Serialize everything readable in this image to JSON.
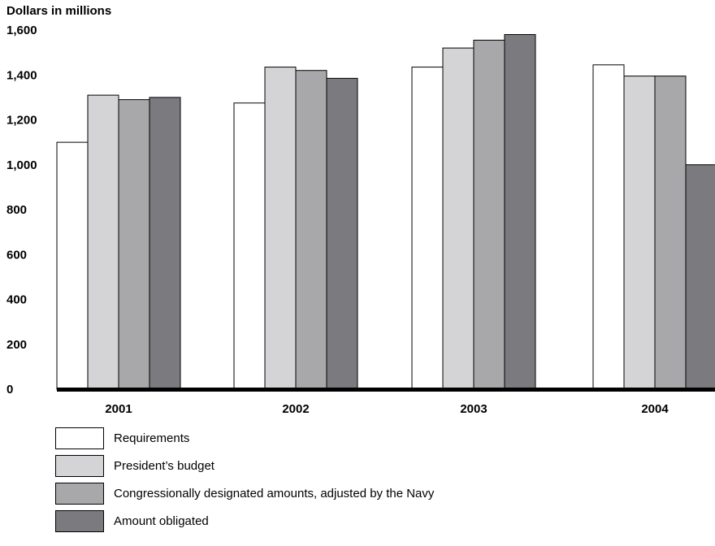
{
  "chart_data": {
    "type": "bar",
    "title": "",
    "ylabel": "Dollars in millions",
    "xlabel": "",
    "categories": [
      "2001",
      "2002",
      "2003",
      "2004"
    ],
    "ylim": [
      0,
      1600
    ],
    "yticks": [
      0,
      200,
      400,
      600,
      800,
      1000,
      1200,
      1400,
      1600
    ],
    "ytick_labels": [
      "0",
      "200",
      "400",
      "600",
      "800",
      "1,000",
      "1,200",
      "1,400",
      "1,600"
    ],
    "grid": false,
    "legend_position": "bottom-left",
    "series": [
      {
        "name": "Requirements",
        "color": "#ffffff",
        "values": [
          1100,
          1275,
          1435,
          1445
        ]
      },
      {
        "name": "President’s budget",
        "color": "#d4d4d6",
        "values": [
          1310,
          1435,
          1520,
          1395
        ]
      },
      {
        "name": "Congressionally designated amounts, adjusted by the Navy",
        "color": "#a8a8ab",
        "values": [
          1290,
          1420,
          1555,
          1395
        ]
      },
      {
        "name": "Amount obligated",
        "color": "#7b7b7f",
        "values": [
          1300,
          1385,
          1580,
          1000
        ]
      }
    ]
  }
}
